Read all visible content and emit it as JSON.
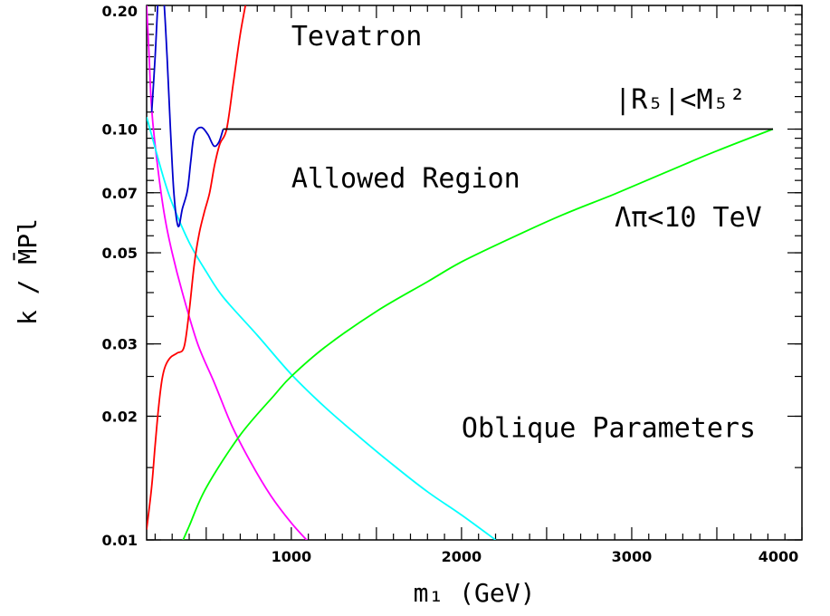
{
  "chart_data": {
    "type": "line",
    "xlabel": "m₁ (GeV)",
    "ylabel": "k / M̄Pl",
    "xlim": [
      150,
      4000
    ],
    "ylim": [
      0.01,
      0.2
    ],
    "yscale": "log",
    "x_ticks": [
      {
        "value": 1000,
        "label": "1000"
      },
      {
        "value": 2000,
        "label": "2000"
      },
      {
        "value": 3000,
        "label": "3000"
      },
      {
        "value": 4000,
        "label": "4000"
      }
    ],
    "y_ticks": [
      {
        "value": 0.01,
        "label": "0.01"
      },
      {
        "value": 0.02,
        "label": "0.02"
      },
      {
        "value": 0.03,
        "label": "0.03"
      },
      {
        "value": 0.05,
        "label": "0.05"
      },
      {
        "value": 0.07,
        "label": "0.07"
      },
      {
        "value": 0.1,
        "label": "0.10"
      },
      {
        "value": 0.2,
        "label": "0.20"
      }
    ],
    "series": [
      {
        "color": "#ff00ff",
        "points": [
          [
            150,
            0.2
          ],
          [
            165,
            0.15
          ],
          [
            175,
            0.12
          ],
          [
            190,
            0.1
          ],
          [
            225,
            0.075
          ],
          [
            260,
            0.06
          ],
          [
            300,
            0.05
          ],
          [
            360,
            0.04
          ],
          [
            450,
            0.03
          ],
          [
            550,
            0.024
          ],
          [
            650,
            0.019
          ],
          [
            760,
            0.0155
          ],
          [
            880,
            0.0128
          ],
          [
            1000,
            0.011
          ],
          [
            1100,
            0.0099
          ]
        ]
      },
      {
        "color": "#00ffff",
        "points": [
          [
            150,
            0.107
          ],
          [
            200,
            0.09
          ],
          [
            250,
            0.076
          ],
          [
            300,
            0.066
          ],
          [
            400,
            0.053
          ],
          [
            500,
            0.045
          ],
          [
            600,
            0.039
          ],
          [
            800,
            0.0315
          ],
          [
            1000,
            0.0253
          ],
          [
            1200,
            0.021
          ],
          [
            1400,
            0.0178
          ],
          [
            1600,
            0.0152
          ],
          [
            1800,
            0.0131
          ],
          [
            2000,
            0.0115
          ],
          [
            2200,
            0.01
          ]
        ]
      },
      {
        "color": "#00ff00",
        "points": [
          [
            360,
            0.0099
          ],
          [
            400,
            0.0108
          ],
          [
            500,
            0.0134
          ],
          [
            700,
            0.018
          ],
          [
            900,
            0.0225
          ],
          [
            1000,
            0.025
          ],
          [
            1200,
            0.0295
          ],
          [
            1500,
            0.036
          ],
          [
            1800,
            0.0425
          ],
          [
            2000,
            0.0475
          ],
          [
            2300,
            0.0545
          ],
          [
            2600,
            0.062
          ],
          [
            2900,
            0.0695
          ],
          [
            3200,
            0.0785
          ],
          [
            3500,
            0.0885
          ],
          [
            3830,
            0.1
          ]
        ]
      },
      {
        "color": "#ff0000",
        "points": [
          [
            150,
            0.0106
          ],
          [
            180,
            0.0135
          ],
          [
            200,
            0.017
          ],
          [
            220,
            0.021
          ],
          [
            240,
            0.0245
          ],
          [
            260,
            0.0265
          ],
          [
            290,
            0.0278
          ],
          [
            330,
            0.0285
          ],
          [
            370,
            0.0295
          ],
          [
            400,
            0.036
          ],
          [
            430,
            0.047
          ],
          [
            460,
            0.056
          ],
          [
            490,
            0.063
          ],
          [
            520,
            0.07
          ],
          [
            550,
            0.082
          ],
          [
            580,
            0.092
          ],
          [
            620,
            0.1
          ],
          [
            660,
            0.13
          ],
          [
            700,
            0.17
          ],
          [
            740,
            0.21
          ]
        ]
      },
      {
        "color": "#0000cc",
        "points": [
          [
            180,
            0.11
          ],
          [
            200,
            0.15
          ],
          [
            215,
            0.2
          ],
          [
            230,
            0.24
          ],
          [
            250,
            0.21
          ],
          [
            270,
            0.15
          ],
          [
            290,
            0.1
          ],
          [
            310,
            0.07
          ],
          [
            335,
            0.058
          ],
          [
            360,
            0.064
          ],
          [
            390,
            0.071
          ],
          [
            410,
            0.084
          ],
          [
            430,
            0.097
          ],
          [
            470,
            0.101
          ],
          [
            510,
            0.097
          ],
          [
            545,
            0.091
          ],
          [
            575,
            0.093
          ],
          [
            600,
            0.1
          ]
        ]
      },
      {
        "color": "#000000",
        "points": [
          [
            600,
            0.1
          ],
          [
            3830,
            0.1
          ]
        ]
      }
    ],
    "annotations": [
      {
        "text": "Tevatron",
        "x": 1000,
        "y": 0.16
      },
      {
        "text": "|R₅|<M₅²",
        "x": 2900,
        "y": 0.112
      },
      {
        "text": "Allowed Region",
        "x": 1000,
        "y": 0.072
      },
      {
        "text": "Λπ<10 TeV",
        "x": 2900,
        "y": 0.058
      },
      {
        "text": "Oblique Parameters",
        "x": 2000,
        "y": 0.0178
      }
    ]
  }
}
